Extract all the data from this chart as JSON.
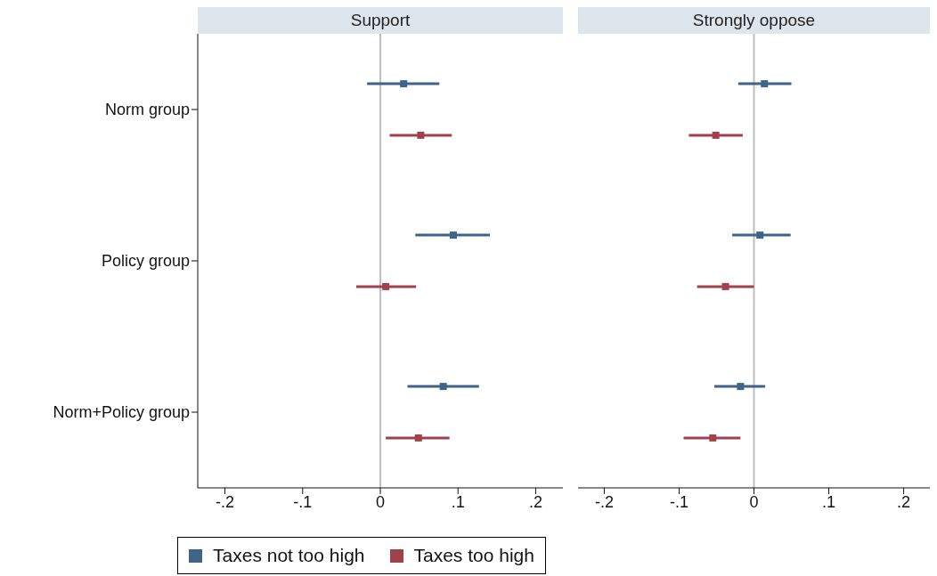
{
  "chart_data": [
    {
      "type": "scatter",
      "orientation": "horizontal",
      "title": "Support",
      "categories": [
        "Norm group",
        "Policy group",
        "Norm+Policy group"
      ],
      "marker": "square",
      "legend": "bottom",
      "series": [
        {
          "name": "Taxes not too high",
          "color": "#3e6487",
          "values": [
            0.03,
            0.094,
            0.081
          ],
          "errors": [
            [
              -0.017,
              0.076
            ],
            [
              0.045,
              0.141
            ],
            [
              0.035,
              0.127
            ]
          ]
        },
        {
          "name": "Taxes too high",
          "color": "#a0424c",
          "values": [
            0.052,
            0.007,
            0.049
          ],
          "errors": [
            [
              0.012,
              0.092
            ],
            [
              -0.031,
              0.046
            ],
            [
              0.007,
              0.089
            ]
          ]
        }
      ],
      "xlim": [
        -0.235,
        0.235
      ],
      "xticks": [
        {
          "value": -0.2,
          "label": "-.2"
        },
        {
          "value": -0.1,
          "label": "-.1"
        },
        0,
        {
          "value": 0.1,
          "label": ".1"
        },
        {
          "value": 0.2,
          "label": ".2"
        }
      ],
      "ref_lines": [
        {
          "axis": "x",
          "value": 0,
          "color": "#c0c0c0"
        }
      ]
    },
    {
      "type": "scatter",
      "orientation": "horizontal",
      "title": "Strongly oppose",
      "categories": [
        null,
        null,
        null
      ],
      "marker": "square",
      "tick_labels": "x",
      "series": [
        {
          "color": "#3e6487",
          "values": [
            0.014,
            0.008,
            -0.018
          ],
          "errors": [
            [
              -0.021,
              0.05
            ],
            [
              -0.029,
              0.049
            ],
            [
              -0.053,
              0.015
            ]
          ]
        },
        {
          "color": "#a0424c",
          "values": [
            -0.051,
            -0.038,
            -0.055
          ],
          "errors": [
            [
              -0.087,
              -0.015
            ],
            [
              -0.076,
              0.0
            ],
            [
              -0.094,
              -0.018
            ]
          ]
        }
      ],
      "xlim": [
        -0.235,
        0.235
      ],
      "xticks": [
        {
          "value": -0.2,
          "label": "-.2"
        },
        {
          "value": -0.1,
          "label": "-.1"
        },
        0,
        {
          "value": 0.1,
          "label": ".1"
        },
        {
          "value": 0.2,
          "label": ".2"
        }
      ],
      "ref_lines": [
        {
          "axis": "x",
          "value": 0,
          "color": "#c0c0c0"
        }
      ]
    }
  ]
}
